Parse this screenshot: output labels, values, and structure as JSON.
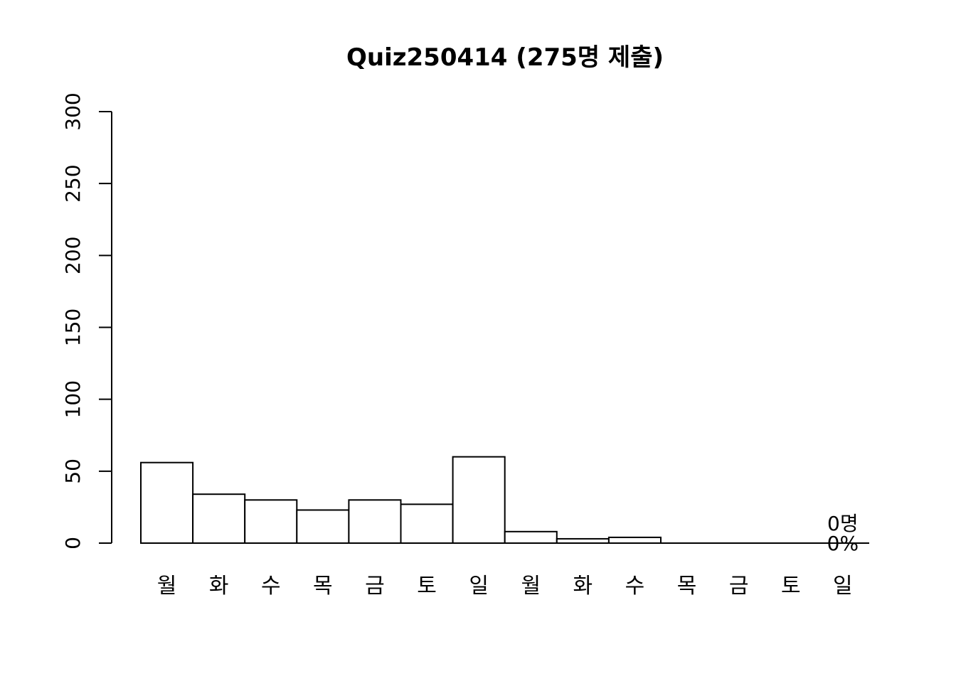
{
  "chart_data": {
    "type": "bar",
    "title": "Quiz250414 (275명 제출)",
    "xlabel": "",
    "ylabel": "",
    "ylim": [
      0,
      300
    ],
    "yticks": [
      0,
      50,
      100,
      150,
      200,
      250,
      300
    ],
    "categories": [
      "월",
      "화",
      "수",
      "목",
      "금",
      "토",
      "일",
      "월",
      "화",
      "수",
      "목",
      "금",
      "토",
      "일"
    ],
    "values": [
      56,
      34,
      30,
      23,
      30,
      27,
      60,
      8,
      3,
      4,
      0,
      0,
      0,
      0
    ],
    "annotations": [
      {
        "category_index": 13,
        "lines": [
          "0명",
          "0%"
        ]
      }
    ],
    "grid": false,
    "legend": "none"
  }
}
